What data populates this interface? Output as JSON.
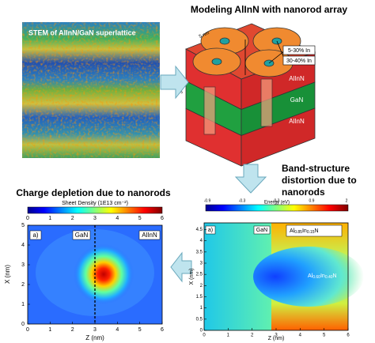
{
  "stem_label": "STEM of AlInN/GaN superlattice",
  "model": {
    "title": "Modeling AlInN with nanorod array",
    "labels": [
      "5-30% In",
      "30-40% In"
    ],
    "layers": [
      "AlInN",
      "GaN",
      "AlInN"
    ],
    "dims": [
      "5 nm",
      "3 nm"
    ]
  },
  "arrow_text": [
    "Band-structure",
    "distortion due to",
    "nanorods"
  ],
  "left_panel": {
    "title": "Charge depletion due to nanorods",
    "colorbar_title": "Sheet Density (1E13 cm⁻²)",
    "colorbar_ticks": [
      0,
      1,
      2,
      3,
      4,
      5,
      6
    ],
    "panel": "a)",
    "regions": [
      "GaN",
      "AlInN"
    ],
    "xlabel": "Z (nm)",
    "ylabel": "X (nm)",
    "xticks": [
      0,
      1,
      2,
      3,
      4,
      5,
      6
    ],
    "yticks": [
      0,
      1,
      2,
      3,
      4,
      5
    ]
  },
  "right_panel": {
    "colorbar_title": "Energy (eV)",
    "colorbar_ticks": [
      -0.9,
      -0.3,
      0.3,
      0.9,
      2
    ],
    "panel": "a)",
    "region": "GaN",
    "alloy1": [
      "Al",
      "0.85",
      "In",
      "0.15",
      "N"
    ],
    "alloy2": [
      "Al",
      "0.60",
      "In",
      "0.40",
      "N"
    ],
    "xlabel": "Z (nm)",
    "ylabel": "X (nm)",
    "xticks": [
      0,
      1,
      2,
      3,
      4,
      5,
      6
    ],
    "yticks": [
      0,
      0.5,
      1,
      1.5,
      2,
      2.5,
      3,
      3.5,
      4,
      4.5
    ]
  }
}
